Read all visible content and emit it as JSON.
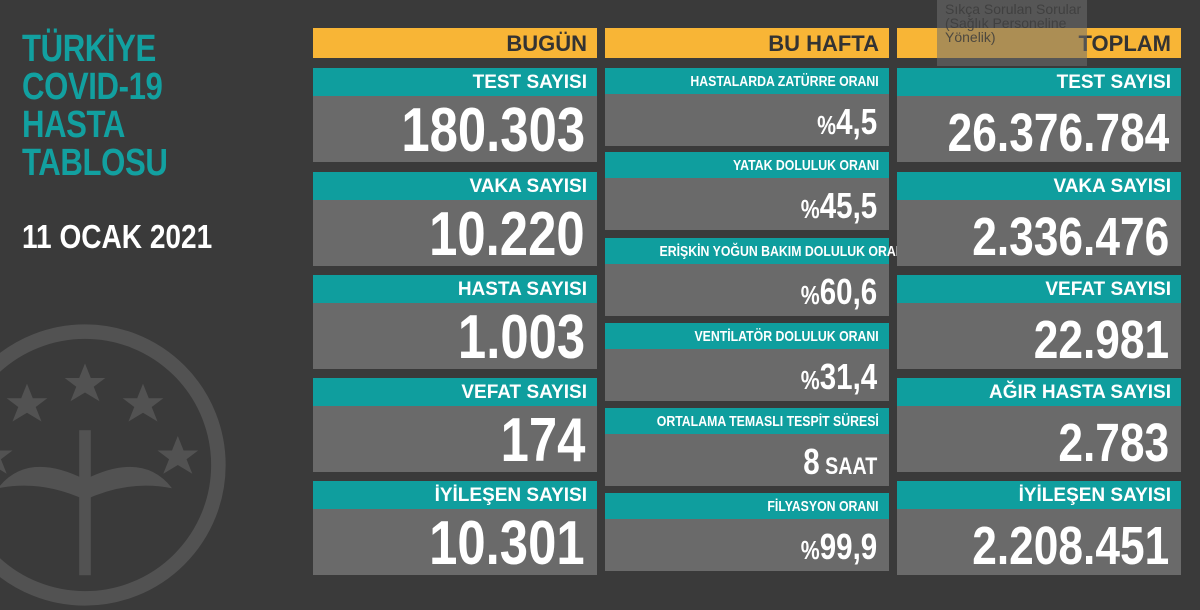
{
  "left": {
    "title_lines": [
      "TÜRKİYE",
      "COVID-19",
      "HASTA",
      "TABLOSU"
    ],
    "date": "11 OCAK 2021"
  },
  "today": {
    "header": "BUGÜN",
    "items": [
      {
        "label": "TEST SAYISI",
        "value": "180.303"
      },
      {
        "label": "VAKA SAYISI",
        "value": "10.220"
      },
      {
        "label": "HASTA SAYISI",
        "value": "1.003"
      },
      {
        "label": "VEFAT SAYISI",
        "value": "174"
      },
      {
        "label": "İYİLEŞEN SAYISI",
        "value": "10.301"
      }
    ]
  },
  "week": {
    "header": "BU HAFTA",
    "items": [
      {
        "label": "HASTALARDA ZATÜRRE ORANI",
        "prefix": "%",
        "value": "4,5",
        "suffix": ""
      },
      {
        "label": "YATAK DOLULUK ORANI",
        "prefix": "%",
        "value": "45,5",
        "suffix": ""
      },
      {
        "label": "ERİŞKİN YOĞUN BAKIM DOLULUK ORANI",
        "prefix": "%",
        "value": "60,6",
        "suffix": ""
      },
      {
        "label": "VENTİLATÖR DOLULUK ORANI",
        "prefix": "%",
        "value": "31,4",
        "suffix": ""
      },
      {
        "label": "ORTALAMA TEMASLI TESPİT SÜRESİ",
        "prefix": "",
        "value": "8",
        "suffix": " SAAT"
      },
      {
        "label": "FİLYASYON ORANI",
        "prefix": "%",
        "value": "99,9",
        "suffix": ""
      }
    ]
  },
  "total": {
    "header": "TOPLAM",
    "items": [
      {
        "label": "TEST SAYISI",
        "value": "26.376.784"
      },
      {
        "label": "VAKA SAYISI",
        "value": "2.336.476"
      },
      {
        "label": "VEFAT SAYISI",
        "value": "22.981"
      },
      {
        "label": "AĞIR HASTA SAYISI",
        "value": "2.783"
      },
      {
        "label": "İYİLEŞEN SAYISI",
        "value": "2.208.451"
      }
    ]
  },
  "tooltip": {
    "lines": [
      "Sıkça Sorulan Sorular",
      "(Sağlık Personeline",
      "Yönelik)"
    ]
  },
  "colors": {
    "background": "#3a3a3a",
    "teal": "#0f9e9e",
    "orange": "#f8b536",
    "panel": "#6a6a6a"
  }
}
